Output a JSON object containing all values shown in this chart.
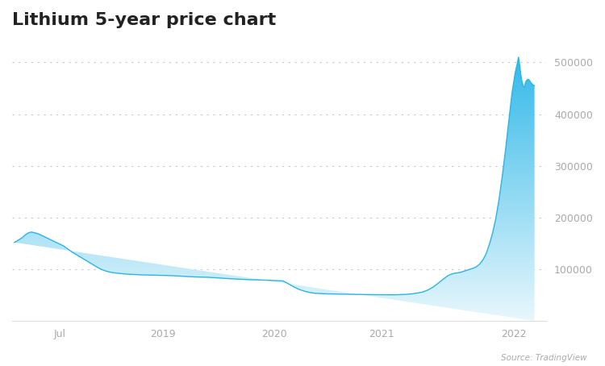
{
  "title": "Lithium 5-year price chart",
  "title_fontsize": 16,
  "source_text": "Source: TradingView",
  "background_color": "#ffffff",
  "line_color": "#29b5e8",
  "fill_top_color": "#29b5e8",
  "fill_bottom_color": "#eaf6fd",
  "ylim": [
    0,
    540000
  ],
  "yticks": [
    100000,
    200000,
    300000,
    400000,
    500000
  ],
  "xtick_labels": [
    "Jul",
    "2019",
    "2020",
    "2021",
    "2022"
  ],
  "grid_color": "#c8c8c8",
  "time_series": [
    [
      0.0,
      152000
    ],
    [
      0.02,
      154000
    ],
    [
      0.05,
      158000
    ],
    [
      0.08,
      162000
    ],
    [
      0.1,
      166000
    ],
    [
      0.12,
      169000
    ],
    [
      0.14,
      171000
    ],
    [
      0.16,
      172000
    ],
    [
      0.18,
      171000
    ],
    [
      0.2,
      170000
    ],
    [
      0.23,
      168000
    ],
    [
      0.26,
      165000
    ],
    [
      0.3,
      161000
    ],
    [
      0.34,
      157000
    ],
    [
      0.38,
      153000
    ],
    [
      0.42,
      149000
    ],
    [
      0.46,
      145000
    ],
    [
      0.5,
      139000
    ],
    [
      0.54,
      133000
    ],
    [
      0.58,
      128000
    ],
    [
      0.62,
      123000
    ],
    [
      0.66,
      118000
    ],
    [
      0.7,
      113000
    ],
    [
      0.74,
      108000
    ],
    [
      0.78,
      103000
    ],
    [
      0.82,
      99000
    ],
    [
      0.86,
      96000
    ],
    [
      0.9,
      94000
    ],
    [
      0.95,
      92500
    ],
    [
      1.0,
      91500
    ],
    [
      1.05,
      90500
    ],
    [
      1.1,
      90000
    ],
    [
      1.15,
      89500
    ],
    [
      1.2,
      89000
    ],
    [
      1.25,
      88800
    ],
    [
      1.3,
      88600
    ],
    [
      1.35,
      88200
    ],
    [
      1.4,
      88000
    ],
    [
      1.45,
      87800
    ],
    [
      1.5,
      87200
    ],
    [
      1.55,
      86500
    ],
    [
      1.6,
      86000
    ],
    [
      1.65,
      85500
    ],
    [
      1.7,
      85000
    ],
    [
      1.75,
      84800
    ],
    [
      1.8,
      84500
    ],
    [
      1.85,
      83800
    ],
    [
      1.9,
      83200
    ],
    [
      1.95,
      82500
    ],
    [
      2.0,
      81800
    ],
    [
      2.05,
      81200
    ],
    [
      2.1,
      80700
    ],
    [
      2.15,
      80200
    ],
    [
      2.2,
      79700
    ],
    [
      2.25,
      79500
    ],
    [
      2.3,
      79200
    ],
    [
      2.35,
      78800
    ],
    [
      2.4,
      78500
    ],
    [
      2.45,
      78000
    ],
    [
      2.5,
      77500
    ],
    [
      2.55,
      72000
    ],
    [
      2.6,
      66000
    ],
    [
      2.65,
      61000
    ],
    [
      2.7,
      57500
    ],
    [
      2.75,
      55000
    ],
    [
      2.8,
      53500
    ],
    [
      2.85,
      53000
    ],
    [
      2.9,
      52500
    ],
    [
      2.95,
      52200
    ],
    [
      3.0,
      52000
    ],
    [
      3.05,
      51800
    ],
    [
      3.1,
      51600
    ],
    [
      3.15,
      51400
    ],
    [
      3.2,
      51200
    ],
    [
      3.25,
      51100
    ],
    [
      3.3,
      51000
    ],
    [
      3.35,
      50900
    ],
    [
      3.4,
      50800
    ],
    [
      3.45,
      50700
    ],
    [
      3.5,
      50600
    ],
    [
      3.55,
      50700
    ],
    [
      3.6,
      51000
    ],
    [
      3.65,
      51500
    ],
    [
      3.7,
      52500
    ],
    [
      3.75,
      54000
    ],
    [
      3.8,
      56000
    ],
    [
      3.85,
      60000
    ],
    [
      3.9,
      66000
    ],
    [
      3.95,
      74000
    ],
    [
      4.0,
      82000
    ],
    [
      4.03,
      87000
    ],
    [
      4.06,
      90000
    ],
    [
      4.09,
      92000
    ],
    [
      4.12,
      93000
    ],
    [
      4.15,
      94000
    ],
    [
      4.18,
      96000
    ],
    [
      4.21,
      98000
    ],
    [
      4.24,
      100000
    ],
    [
      4.27,
      102000
    ],
    [
      4.3,
      105000
    ],
    [
      4.33,
      110000
    ],
    [
      4.36,
      118000
    ],
    [
      4.39,
      130000
    ],
    [
      4.42,
      148000
    ],
    [
      4.45,
      170000
    ],
    [
      4.48,
      198000
    ],
    [
      4.51,
      235000
    ],
    [
      4.54,
      280000
    ],
    [
      4.57,
      330000
    ],
    [
      4.6,
      385000
    ],
    [
      4.63,
      440000
    ],
    [
      4.66,
      480000
    ],
    [
      4.68,
      498000
    ],
    [
      4.69,
      510000
    ],
    [
      4.695,
      505000
    ],
    [
      4.7,
      498000
    ],
    [
      4.705,
      490000
    ],
    [
      4.71,
      480000
    ],
    [
      4.715,
      473000
    ],
    [
      4.72,
      467000
    ],
    [
      4.725,
      462000
    ],
    [
      4.73,
      458000
    ],
    [
      4.735,
      455000
    ],
    [
      4.74,
      453000
    ],
    [
      4.745,
      452000
    ],
    [
      4.75,
      455000
    ],
    [
      4.755,
      460000
    ],
    [
      4.76,
      463000
    ],
    [
      4.765,
      465000
    ],
    [
      4.77,
      466000
    ],
    [
      4.775,
      467000
    ],
    [
      4.78,
      467500
    ],
    [
      4.785,
      467000
    ],
    [
      4.79,
      466000
    ],
    [
      4.795,
      465000
    ],
    [
      4.8,
      463000
    ],
    [
      4.81,
      460000
    ],
    [
      4.82,
      458000
    ],
    [
      4.83,
      456000
    ],
    [
      4.84,
      455000
    ]
  ],
  "xtick_positions": [
    0.42,
    1.38,
    2.42,
    3.42,
    4.65
  ],
  "xmin": -0.02,
  "xmax": 4.95
}
